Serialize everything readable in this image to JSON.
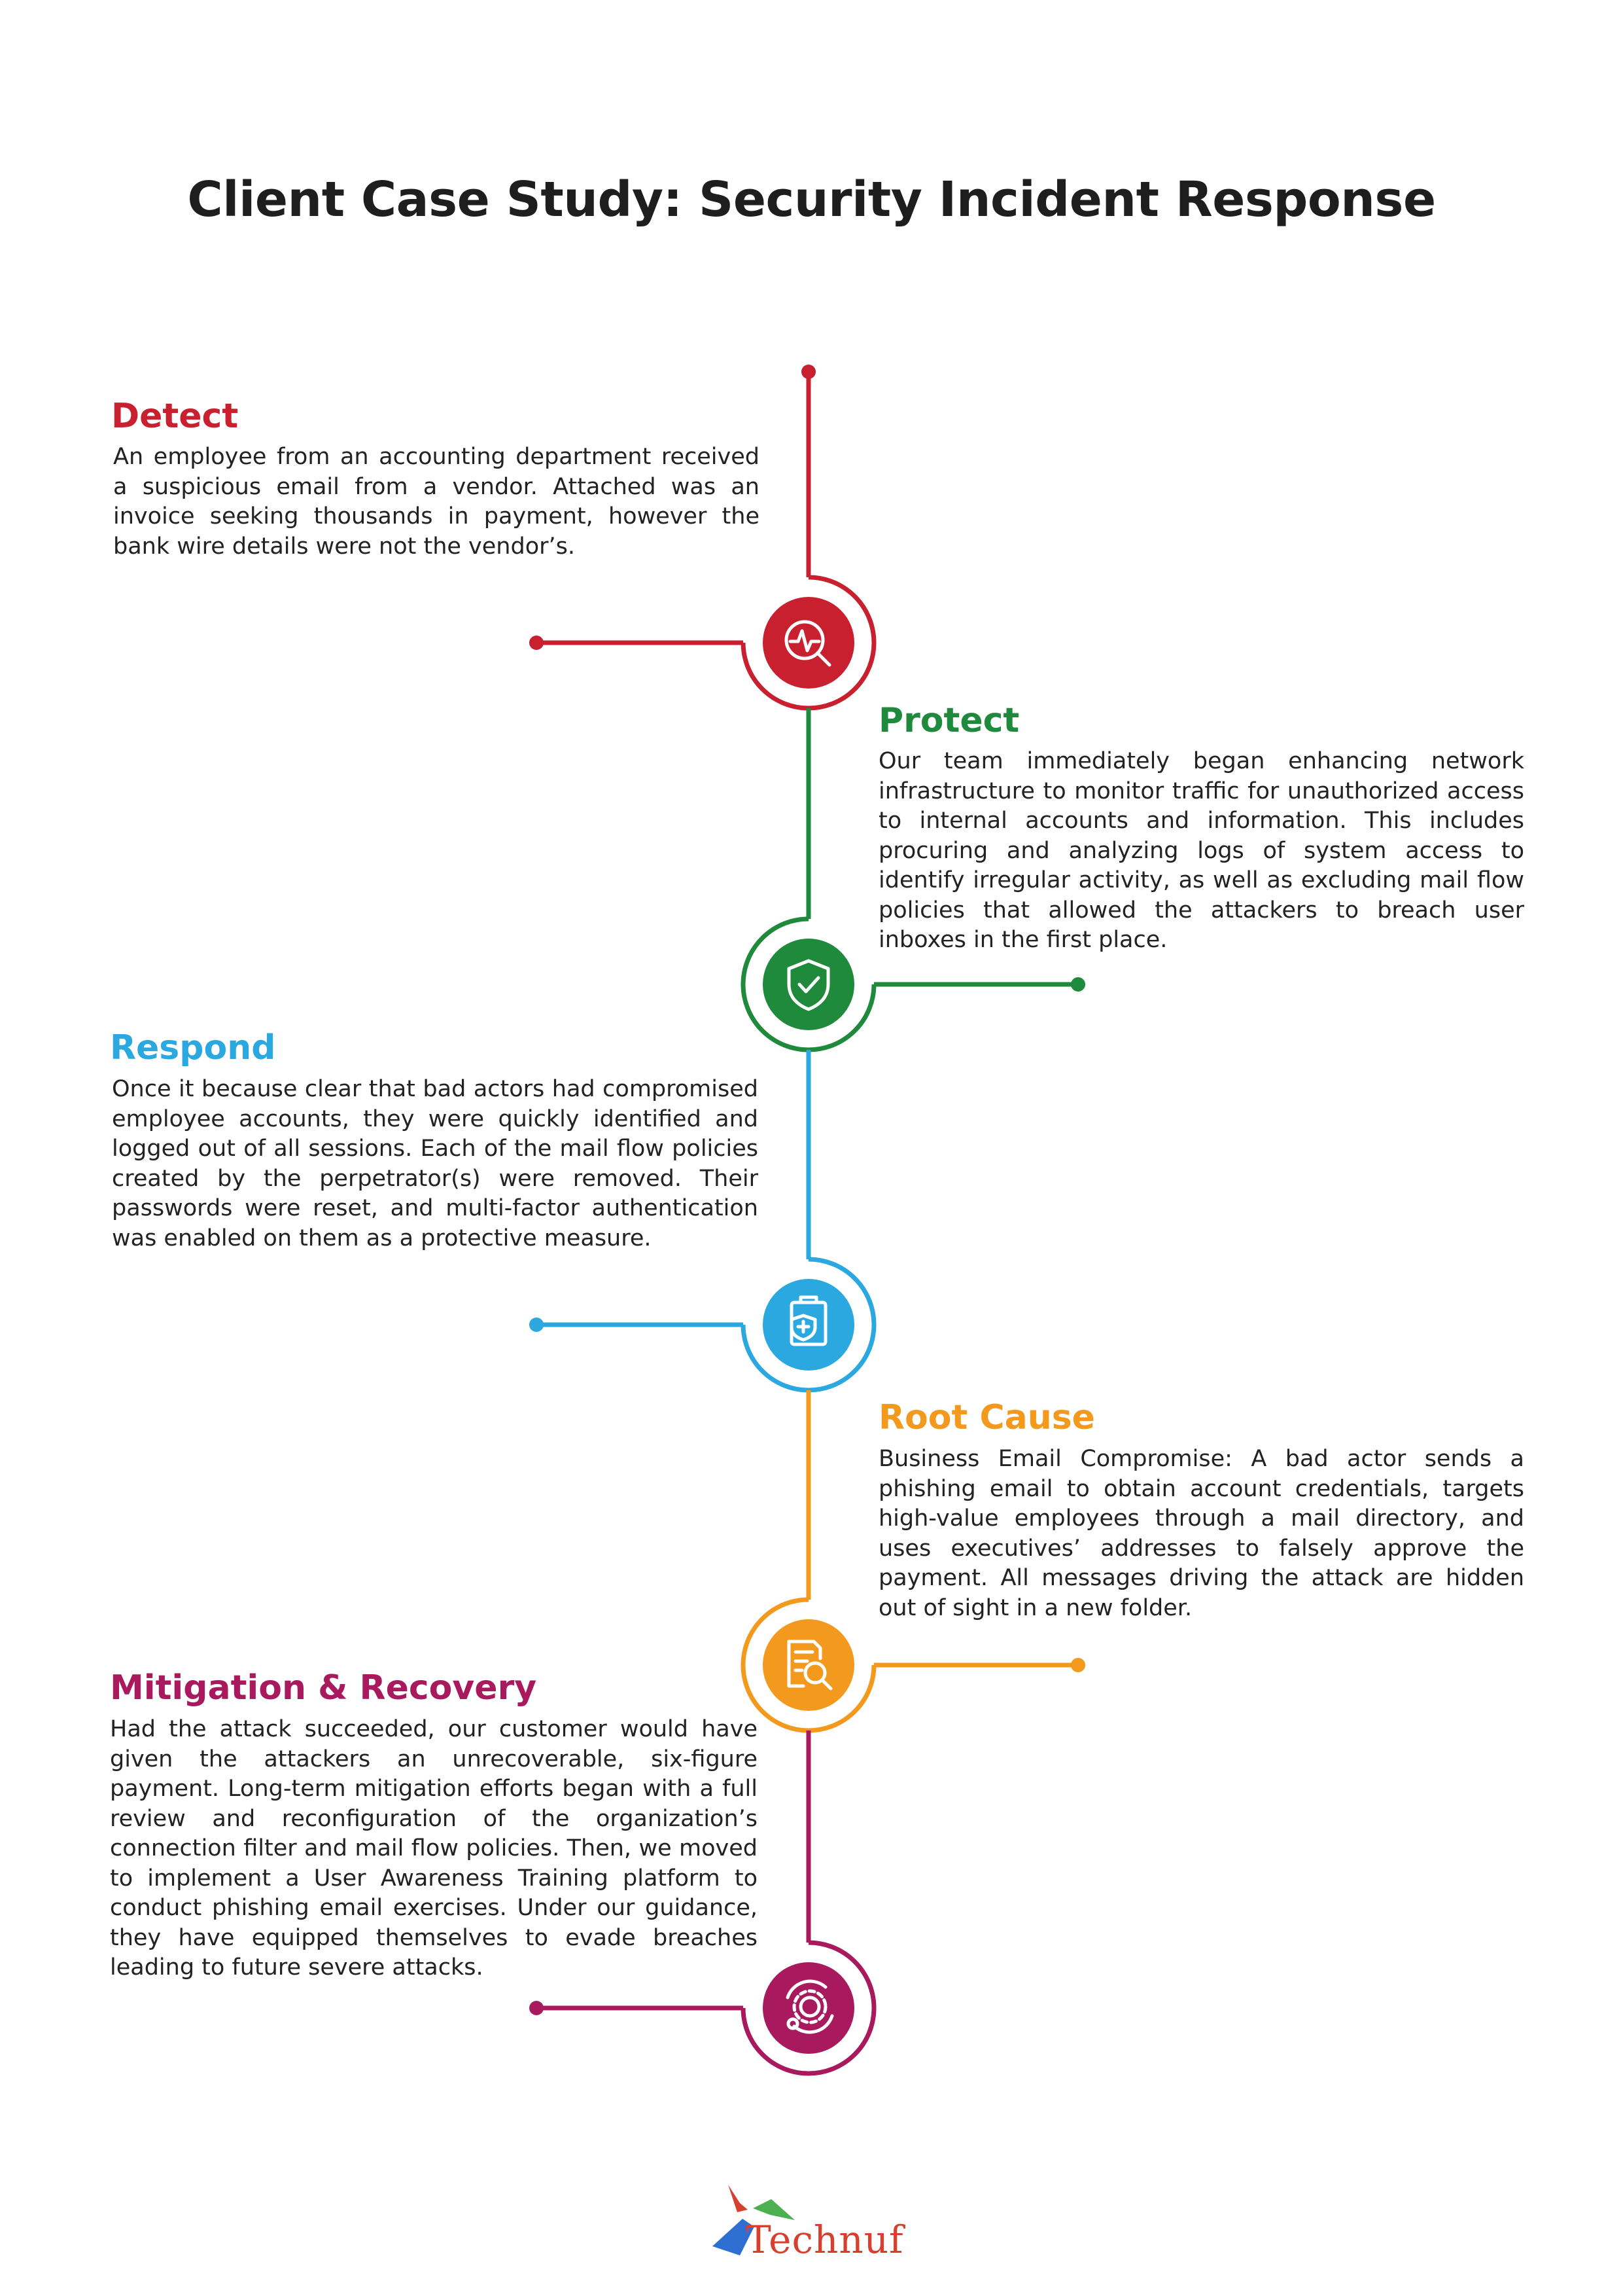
{
  "title": "Client Case Study: Security Incident Response",
  "colors": {
    "detect": "#c8202e",
    "protect": "#1f8a3b",
    "respond": "#2aa8df",
    "root_cause": "#f39a1e",
    "mitigation": "#a8195d"
  },
  "sections": {
    "detect": {
      "heading": "Detect",
      "body": "An employee from an accounting department received a suspicious email from a vendor. Attached was an invoice seeking thousands in payment, however the bank wire details were not the vendor’s.",
      "icon": "magnifier-pulse-icon"
    },
    "protect": {
      "heading": "Protect",
      "body": "Our team immediately began enhancing network infrastructure to monitor traffic for unauthorized access to internal accounts and information. This includes procuring and analyzing logs of system access to identify irregular activity, as well as excluding mail flow policies that allowed the attackers to breach user inboxes in the first place.",
      "icon": "shield-check-icon"
    },
    "respond": {
      "heading": "Respond",
      "body": "Once it because clear that bad actors had compromised employee accounts, they were quickly identified and logged out of all sessions. Each of the mail flow policies created by the perpetrator(s) were removed. Their passwords were reset, and multi-factor authentication was enabled on them as a protective measure.",
      "icon": "clipboard-shield-icon"
    },
    "root_cause": {
      "heading": "Root Cause",
      "body": "Business Email Compromise: A bad actor sends a phishing email to obtain account credentials, targets high-value employees through a mail directory, and uses executives’ addresses to falsely approve the payment. All messages driving the attack are hidden out of sight in a new folder.",
      "icon": "document-search-icon"
    },
    "mitigation": {
      "heading": "Mitigation & Recovery",
      "body": "Had the attack succeeded, our customer would have given the attackers an unrecoverable, six-figure payment. Long-term mitigation efforts began with a full review and reconfiguration of the organization’s connection filter and mail flow policies. Then, we moved to implement a User Awareness Training platform to conduct phishing email exercises. Under our guidance, they have equipped themselves to evade breaches leading to future severe attacks.",
      "icon": "gears-recycle-icon"
    }
  },
  "logo": {
    "text": "Technuf",
    "colors": [
      "#d7402e",
      "#4caf50",
      "#2f6fd1"
    ]
  }
}
